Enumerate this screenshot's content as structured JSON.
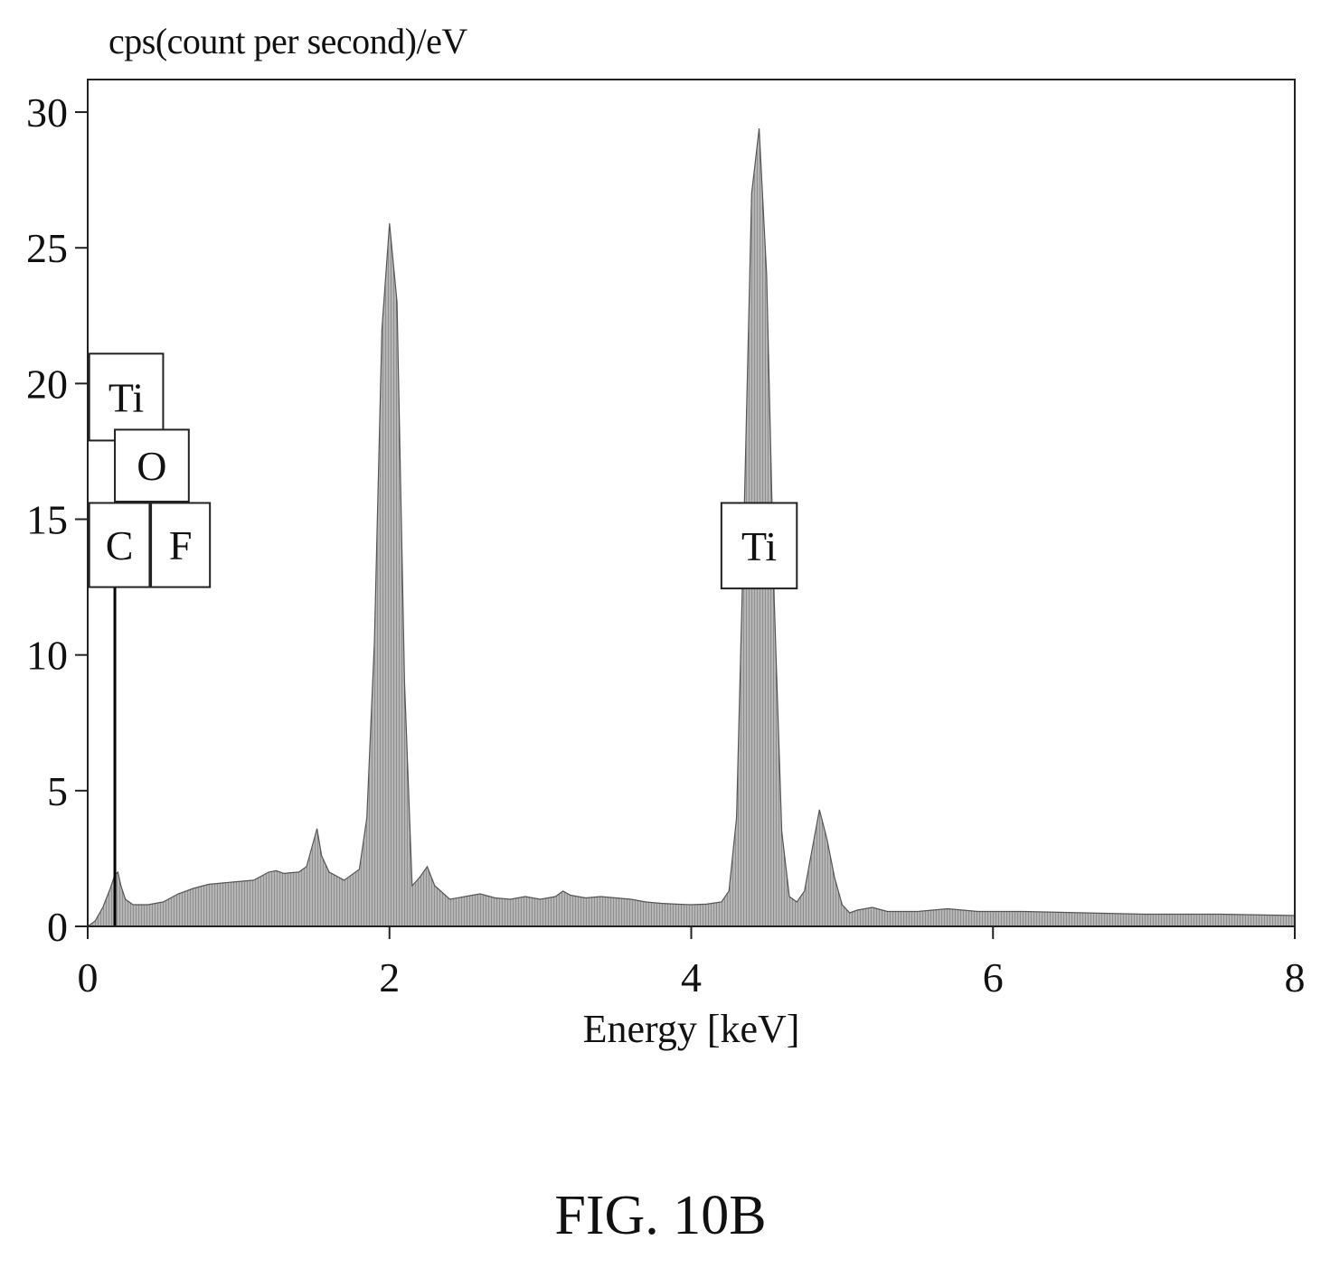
{
  "figure": {
    "caption": "FIG. 10B"
  },
  "chart_data": {
    "type": "area",
    "ylabel": "cps(count per second)/eV",
    "xlabel": "Energy [keV]",
    "xlim": [
      0,
      8
    ],
    "ylim": [
      0,
      31.2
    ],
    "xticks": [
      0,
      2,
      4,
      6,
      8
    ],
    "yticks": [
      0,
      5,
      10,
      15,
      20,
      25,
      30
    ],
    "grid": false,
    "colors": {
      "fill": "#9a9a9a",
      "stroke": "#555555"
    },
    "series": [
      {
        "x": [
          0,
          0.05,
          0.1,
          0.15,
          0.18,
          0.2,
          0.22,
          0.25,
          0.3,
          0.35,
          0.4,
          0.5,
          0.6,
          0.7,
          0.8,
          0.9,
          1.0,
          1.1,
          1.2,
          1.25,
          1.3,
          1.4,
          1.45,
          1.5,
          1.52,
          1.55,
          1.6,
          1.7,
          1.8,
          1.85,
          1.9,
          1.95,
          2.0,
          2.05,
          2.1,
          2.15,
          2.2,
          2.25,
          2.3,
          2.4,
          2.5,
          2.6,
          2.7,
          2.8,
          2.9,
          3.0,
          3.1,
          3.15,
          3.2,
          3.3,
          3.4,
          3.5,
          3.6,
          3.7,
          3.8,
          3.9,
          4.0,
          4.1,
          4.2,
          4.25,
          4.3,
          4.35,
          4.4,
          4.45,
          4.5,
          4.55,
          4.6,
          4.65,
          4.7,
          4.75,
          4.8,
          4.85,
          4.9,
          4.95,
          5.0,
          5.05,
          5.1,
          5.2,
          5.3,
          5.5,
          5.7,
          5.9,
          6.2,
          6.6,
          7.0,
          7.5,
          8.0
        ],
        "y": [
          0,
          0.2,
          0.7,
          1.4,
          1.9,
          2.0,
          1.5,
          1.0,
          0.8,
          0.8,
          0.8,
          0.9,
          1.2,
          1.4,
          1.55,
          1.6,
          1.65,
          1.7,
          2.0,
          2.05,
          1.95,
          2.0,
          2.2,
          3.2,
          3.6,
          2.6,
          2.0,
          1.7,
          2.1,
          4.0,
          10.5,
          22.0,
          25.9,
          23.0,
          9.0,
          1.5,
          1.8,
          2.2,
          1.5,
          1.0,
          1.1,
          1.2,
          1.05,
          1.0,
          1.1,
          1.0,
          1.1,
          1.3,
          1.15,
          1.05,
          1.1,
          1.05,
          1.0,
          0.9,
          0.85,
          0.82,
          0.8,
          0.82,
          0.9,
          1.3,
          4.0,
          15.0,
          27.0,
          29.4,
          24.0,
          12.0,
          3.5,
          1.1,
          0.9,
          1.3,
          2.8,
          4.3,
          3.2,
          1.8,
          0.8,
          0.5,
          0.6,
          0.7,
          0.55,
          0.55,
          0.65,
          0.55,
          0.55,
          0.5,
          0.45,
          0.45,
          0.4
        ]
      }
    ],
    "marker_line": {
      "x": 0.18,
      "y": 12.8
    },
    "annotations": [
      {
        "label": "Ti",
        "x": 0.01,
        "y": 21.1,
        "w": 0.49,
        "h": 3.2
      },
      {
        "label": "O",
        "x": 0.18,
        "y": 18.3,
        "w": 0.49,
        "h": 2.65
      },
      {
        "label": "C",
        "x": 0.01,
        "y": 15.6,
        "w": 0.4,
        "h": 3.1
      },
      {
        "label": "F",
        "x": 0.42,
        "y": 15.6,
        "w": 0.39,
        "h": 3.1
      },
      {
        "label": "Ti",
        "x": 4.2,
        "y": 15.6,
        "w": 0.5,
        "h": 3.15
      }
    ]
  }
}
